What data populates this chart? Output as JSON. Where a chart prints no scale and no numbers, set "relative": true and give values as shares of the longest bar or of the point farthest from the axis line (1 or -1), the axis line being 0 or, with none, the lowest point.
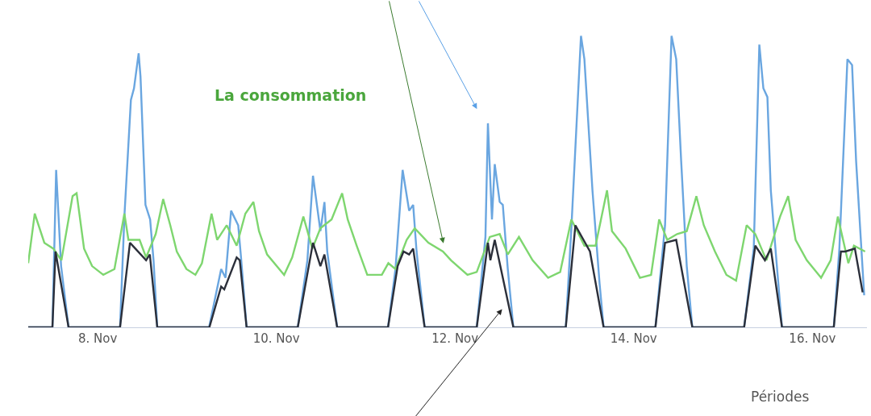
{
  "chart_data": {
    "type": "line",
    "relative": true,
    "xlabel": "Périodes",
    "annotations": [
      "La consommation"
    ],
    "marker": "none",
    "line_style": "solid",
    "xlim": [
      "--11-07T05:20",
      "--11-16T14:40"
    ],
    "xticks": [
      {
        "value": "--11-08",
        "label": "8. Nov"
      },
      {
        "value": "--11-10",
        "label": "10. Nov"
      },
      {
        "value": "--11-12",
        "label": "12. Nov"
      },
      {
        "value": "--11-14",
        "label": "14. Nov"
      },
      {
        "value": "--11-16",
        "label": "16. Nov"
      }
    ],
    "series": [
      {
        "color": "#6aa6e0",
        "x": [
          "--11-07T05:20",
          "--11-07T11:50",
          "--11-07T12:50",
          "--11-07T14:10",
          "--11-07T16:10",
          "--11-08T06:00",
          "--11-08T07:10",
          "--11-08T08:55",
          "--11-08T09:45",
          "--11-08T11:00",
          "--11-08T11:30",
          "--11-08T12:50",
          "--11-08T14:05",
          "--11-08T15:00",
          "--11-08T16:00",
          "--11-09T05:55",
          "--11-09T09:10",
          "--11-09T10:20",
          "--11-09T11:50",
          "--11-09T13:45",
          "--11-09T14:30",
          "--11-09T16:00",
          "--11-10T05:45",
          "--11-10T08:20",
          "--11-10T09:50",
          "--11-10T11:50",
          "--11-10T12:55",
          "--11-10T13:40",
          "--11-10T16:20",
          "--11-11T06:00",
          "--11-11T08:00",
          "--11-11T09:55",
          "--11-11T11:40",
          "--11-11T12:45",
          "--11-11T13:40",
          "--11-11T15:50",
          "--11-12T05:50",
          "--11-12T08:10",
          "--11-12T08:50",
          "--11-12T09:55",
          "--11-12T10:40",
          "--11-12T12:00",
          "--11-12T12:50",
          "--11-12T14:10",
          "--11-12T15:40",
          "--11-13T05:45",
          "--11-13T07:15",
          "--11-13T09:50",
          "--11-13T10:45",
          "--11-13T12:55",
          "--11-13T14:50",
          "--11-13T15:55",
          "--11-14T05:50",
          "--11-14T08:25",
          "--11-14T10:10",
          "--11-14T11:25",
          "--11-14T12:45",
          "--11-14T14:15",
          "--11-14T15:45",
          "--11-15T05:40",
          "--11-15T08:15",
          "--11-15T09:45",
          "--11-15T10:50",
          "--11-15T11:55",
          "--11-15T12:50",
          "--11-15T14:20",
          "--11-15T15:50",
          "--11-16T05:45",
          "--11-16T07:15",
          "--11-16T09:25",
          "--11-16T10:40",
          "--11-16T11:45",
          "--11-16T13:55"
        ],
        "values": [
          0,
          0,
          0.54,
          0.21,
          0,
          0,
          0.38,
          0.78,
          0.82,
          0.94,
          0.86,
          0.42,
          0.37,
          0.23,
          0,
          0,
          0.2,
          0.17,
          0.4,
          0.35,
          0.24,
          0,
          0,
          0.23,
          0.52,
          0.33,
          0.43,
          0.26,
          0,
          0,
          0.2,
          0.54,
          0.4,
          0.42,
          0.26,
          0,
          0,
          0.31,
          0.7,
          0.37,
          0.56,
          0.43,
          0.42,
          0.2,
          0,
          0,
          0.34,
          1,
          0.92,
          0.47,
          0.15,
          0,
          0,
          0.35,
          1,
          0.92,
          0.57,
          0.21,
          0,
          0,
          0.27,
          0.97,
          0.82,
          0.79,
          0.47,
          0.23,
          0,
          0,
          0.27,
          0.92,
          0.9,
          0.57,
          0.11
        ]
      },
      {
        "color": "#7ed66f",
        "x": [
          "--11-07T05:20",
          "--11-07T07:05",
          "--11-07T09:40",
          "--11-07T12:05",
          "--11-07T14:15",
          "--11-07T17:15",
          "--11-07T18:20",
          "--11-07T20:20",
          "--11-07T22:30",
          "--11-08T01:30",
          "--11-08T04:30",
          "--11-08T07:10",
          "--11-08T08:15",
          "--11-08T11:15",
          "--11-08T13:00",
          "--11-08T15:35",
          "--11-08T17:35",
          "--11-08T19:30",
          "--11-08T21:15",
          "--11-08T23:50",
          "--11-09T02:15",
          "--11-09T04:00",
          "--11-09T06:35",
          "--11-09T08:05",
          "--11-09T10:40",
          "--11-09T13:20",
          "--11-09T15:40",
          "--11-09T17:50",
          "--11-09T19:20",
          "--11-09T21:30",
          "--11-10T02:05",
          "--11-10T04:15",
          "--11-10T07:15",
          "--11-10T09:40",
          "--11-10T11:50",
          "--11-10T14:50",
          "--11-10T17:40",
          "--11-10T19:10",
          "--11-10T21:35",
          "--11-11T00:25",
          "--11-11T04:20",
          "--11-11T06:05",
          "--11-11T08:00",
          "--11-11T11:00",
          "--11-11T13:10",
          "--11-11T16:50",
          "--11-11T20:45",
          "--11-11T22:55",
          "--11-12T03:20",
          "--11-12T05:50",
          "--11-12T09:20",
          "--11-12T12:00",
          "--11-12T14:10",
          "--11-12T17:10",
          "--11-12T20:50",
          "--11-13T01:00",
          "--11-13T04:15",
          "--11-13T07:15",
          "--11-13T10:45",
          "--11-13T13:45",
          "--11-13T16:50",
          "--11-13T18:10",
          "--11-13T21:50",
          "--11-14T01:40",
          "--11-14T04:40",
          "--11-14T06:50",
          "--11-14T09:00",
          "--11-14T11:40",
          "--11-14T14:15",
          "--11-14T16:50",
          "--11-14T18:50",
          "--11-14T21:50",
          "--11-15T00:55",
          "--11-15T03:30",
          "--11-15T06:20",
          "--11-15T08:40",
          "--11-15T11:40",
          "--11-15T15:20",
          "--11-15T17:30",
          "--11-15T19:30",
          "--11-15T22:30",
          "--11-16T02:20",
          "--11-16T04:55",
          "--11-16T06:50",
          "--11-16T09:40",
          "--11-16T11:10",
          "--11-16T14:10"
        ],
        "values": [
          0.22,
          0.39,
          0.29,
          0.27,
          0.23,
          0.45,
          0.46,
          0.27,
          0.21,
          0.18,
          0.2,
          0.39,
          0.3,
          0.3,
          0.24,
          0.32,
          0.44,
          0.35,
          0.26,
          0.2,
          0.18,
          0.22,
          0.39,
          0.3,
          0.35,
          0.28,
          0.39,
          0.43,
          0.33,
          0.25,
          0.18,
          0.24,
          0.38,
          0.27,
          0.34,
          0.37,
          0.46,
          0.37,
          0.28,
          0.18,
          0.18,
          0.22,
          0.2,
          0.3,
          0.34,
          0.29,
          0.26,
          0.23,
          0.18,
          0.19,
          0.31,
          0.32,
          0.25,
          0.31,
          0.23,
          0.17,
          0.19,
          0.37,
          0.28,
          0.28,
          0.47,
          0.33,
          0.27,
          0.17,
          0.18,
          0.37,
          0.3,
          0.32,
          0.33,
          0.45,
          0.35,
          0.26,
          0.18,
          0.16,
          0.35,
          0.32,
          0.23,
          0.38,
          0.45,
          0.3,
          0.23,
          0.17,
          0.23,
          0.38,
          0.22,
          0.28,
          0.26
        ]
      },
      {
        "color": "#2b2f3a",
        "x": [
          "--11-07T05:20",
          "--11-07T11:50",
          "--11-07T12:40",
          "--11-07T16:10",
          "--11-08T06:00",
          "--11-08T08:40",
          "--11-08T13:00",
          "--11-08T14:00",
          "--11-08T16:00",
          "--11-09T06:00",
          "--11-09T09:10",
          "--11-09T10:00",
          "--11-09T13:20",
          "--11-09T14:10",
          "--11-09T16:00",
          "--11-10T05:45",
          "--11-10T09:50",
          "--11-10T11:50",
          "--11-10T12:55",
          "--11-10T16:20",
          "--11-11T06:00",
          "--11-11T08:35",
          "--11-11T10:10",
          "--11-11T11:40",
          "--11-11T12:45",
          "--11-11T15:50",
          "--11-12T05:50",
          "--11-12T08:50",
          "--11-12T09:30",
          "--11-12T10:40",
          "--11-12T15:40",
          "--11-13T05:45",
          "--11-13T08:20",
          "--11-13T12:15",
          "--11-13T15:55",
          "--11-14T05:50",
          "--11-14T08:25",
          "--11-14T11:25",
          "--11-14T15:45",
          "--11-15T05:40",
          "--11-15T08:40",
          "--11-15T11:15",
          "--11-15T12:50",
          "--11-15T15:50",
          "--11-16T05:45",
          "--11-16T07:40",
          "--11-16T08:50",
          "--11-16T11:25",
          "--11-16T13:30"
        ],
        "values": [
          0,
          0,
          0.26,
          0,
          0,
          0.29,
          0.23,
          0.25,
          0,
          0,
          0.14,
          0.13,
          0.24,
          0.23,
          0,
          0,
          0.29,
          0.21,
          0.25,
          0,
          0,
          0.21,
          0.26,
          0.25,
          0.27,
          0,
          0,
          0.29,
          0.23,
          0.3,
          0,
          0,
          0.35,
          0.26,
          0,
          0,
          0.29,
          0.3,
          0,
          0,
          0.28,
          0.23,
          0.27,
          0,
          0,
          0.26,
          0.26,
          0.27,
          0.12
        ]
      }
    ]
  }
}
